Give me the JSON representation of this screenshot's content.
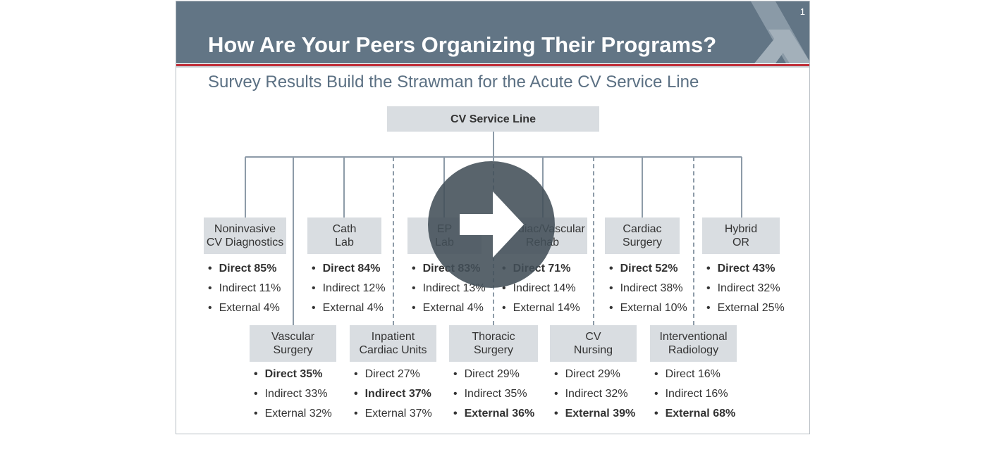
{
  "slide": {
    "title": "How Are Your Peers Organizing Their Programs?",
    "page_number": "1",
    "subtitle": "Survey Results Build the Strawman for the Acute CV Service Line",
    "colors": {
      "header": "#627585",
      "accent_line": "#c0303a",
      "box": "#d9dde1"
    }
  },
  "root": {
    "label": "CV Service Line"
  },
  "top_row": [
    {
      "line1": "Noninvasive",
      "line2": "CV Diagnostics",
      "items": [
        {
          "text": "Direct 85%",
          "bold": true
        },
        {
          "text": "Indirect 11%",
          "bold": false
        },
        {
          "text": "External 4%",
          "bold": false
        }
      ]
    },
    {
      "line1": "Cath",
      "line2": "Lab",
      "items": [
        {
          "text": "Direct 84%",
          "bold": true
        },
        {
          "text": "Indirect 12%",
          "bold": false
        },
        {
          "text": "External 4%",
          "bold": false
        }
      ]
    },
    {
      "line1": "EP",
      "line2": "Lab",
      "items": [
        {
          "text": "Direct 83%",
          "bold": true
        },
        {
          "text": "Indirect 13%",
          "bold": false
        },
        {
          "text": "External 4%",
          "bold": false
        }
      ]
    },
    {
      "line1": "Cardiac/Vascular",
      "line2": "Rehab",
      "items": [
        {
          "text": "Direct 71%",
          "bold": true
        },
        {
          "text": "Indirect 14%",
          "bold": false
        },
        {
          "text": "External 14%",
          "bold": false
        }
      ]
    },
    {
      "line1": "Cardiac",
      "line2": "Surgery",
      "items": [
        {
          "text": "Direct 52%",
          "bold": true
        },
        {
          "text": "Indirect 38%",
          "bold": false
        },
        {
          "text": "External 10%",
          "bold": false
        }
      ]
    },
    {
      "line1": "Hybrid",
      "line2": "OR",
      "items": [
        {
          "text": "Direct 43%",
          "bold": true
        },
        {
          "text": "Indirect 32%",
          "bold": false
        },
        {
          "text": "External 25%",
          "bold": false
        }
      ]
    }
  ],
  "bottom_row": [
    {
      "line1": "Vascular",
      "line2": "Surgery",
      "items": [
        {
          "text": "Direct 35%",
          "bold": true
        },
        {
          "text": "Indirect 33%",
          "bold": false
        },
        {
          "text": "External 32%",
          "bold": false
        }
      ]
    },
    {
      "line1": "Inpatient",
      "line2": "Cardiac Units",
      "items": [
        {
          "text": "Direct 27%",
          "bold": false
        },
        {
          "text": "Indirect 37%",
          "bold": true
        },
        {
          "text": "External 37%",
          "bold": false
        }
      ]
    },
    {
      "line1": "Thoracic",
      "line2": "Surgery",
      "items": [
        {
          "text": "Direct 29%",
          "bold": false
        },
        {
          "text": "Indirect 35%",
          "bold": false
        },
        {
          "text": "External 36%",
          "bold": true
        }
      ]
    },
    {
      "line1": "CV",
      "line2": "Nursing",
      "items": [
        {
          "text": "Direct 29%",
          "bold": false
        },
        {
          "text": "Indirect 32%",
          "bold": false
        },
        {
          "text": "External 39%",
          "bold": true
        }
      ]
    },
    {
      "line1": "Interventional",
      "line2": "Radiology",
      "items": [
        {
          "text": "Direct 16%",
          "bold": false
        },
        {
          "text": "Indirect 16%",
          "bold": false
        },
        {
          "text": "External 68%",
          "bold": true
        }
      ]
    }
  ],
  "video": {
    "play_icon": "play-arrow-icon"
  }
}
